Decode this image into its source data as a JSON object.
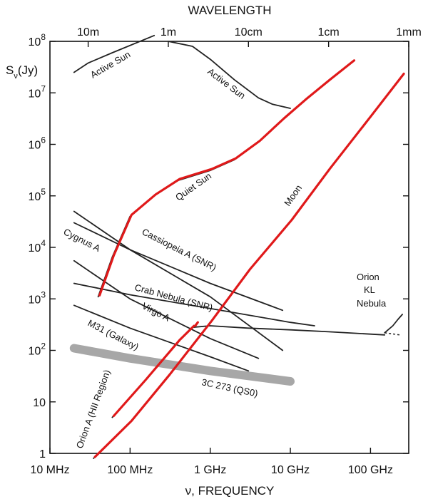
{
  "chart_data": {
    "type": "line",
    "title": "WAVELENGTH",
    "xlabel": "ν, FREQUENCY",
    "ylabel": "Sν(Jy)",
    "x_scale": "log",
    "y_scale": "log",
    "xlim": [
      10,
      300000
    ],
    "ylim": [
      1,
      100000000
    ],
    "x_tick_values": [
      10,
      100,
      1000,
      10000,
      100000
    ],
    "x_ticks": [
      "10 MHz",
      "100 MHz",
      "1 GHz",
      "10 GHz",
      "100 GHz"
    ],
    "top_tick_values": [
      30,
      300,
      3000,
      30000,
      300000
    ],
    "top_ticks": [
      "10m",
      "1m",
      "10cm",
      "1cm",
      "1mm"
    ],
    "y_tick_values": [
      1,
      10,
      100,
      1000,
      10000,
      100000,
      1000000,
      10000000,
      100000000
    ],
    "y_ticks": [
      {
        "base": "1",
        "exp": ""
      },
      {
        "base": "10",
        "exp": ""
      },
      {
        "base": "10",
        "exp": "2"
      },
      {
        "base": "10",
        "exp": "3"
      },
      {
        "base": "10",
        "exp": "4"
      },
      {
        "base": "10",
        "exp": "5"
      },
      {
        "base": "10",
        "exp": "6"
      },
      {
        "base": "10",
        "exp": "7"
      },
      {
        "base": "10",
        "exp": "8"
      }
    ],
    "grid": false,
    "series": [
      {
        "name": "Active Sun",
        "color": "#222222",
        "x": [
          20,
          30,
          60,
          200
        ],
        "y": [
          25000000,
          38000000,
          60000000,
          130000000
        ]
      },
      {
        "name": "Active Sun",
        "color": "#222222",
        "x": [
          300,
          600,
          1000,
          2000,
          4000,
          6000,
          10000
        ],
        "y": [
          100000000,
          80000000,
          45000000,
          18000000,
          8000000,
          6000000,
          5000000
        ]
      },
      {
        "name": "Quiet Sun",
        "color": "#222222",
        "x": [
          40,
          60,
          100,
          200,
          400,
          1000,
          2000,
          4000,
          8000,
          15000,
          30000,
          60000
        ],
        "y": [
          1100,
          6500,
          40000,
          100000,
          200000,
          310000,
          500000,
          1100000,
          3000000,
          7000000,
          17000000,
          40000000
        ]
      },
      {
        "name": "Moon",
        "color": "#222222",
        "x": [
          35,
          100,
          300,
          1000,
          3000,
          10000,
          30000,
          100000,
          250000
        ],
        "y": [
          0.8,
          4,
          32,
          350,
          3500,
          32000,
          320000,
          3500000,
          22000000
        ]
      },
      {
        "name": "Cygnus A",
        "color": "#222222",
        "x": [
          20,
          100,
          1000,
          8000
        ],
        "y": [
          50000,
          9000,
          1100,
          100
        ]
      },
      {
        "name": "Cassiopeia A (SNR)",
        "color": "#222222",
        "x": [
          20,
          100,
          1000,
          8000
        ],
        "y": [
          30000,
          9000,
          2000,
          600
        ]
      },
      {
        "name": "Crab Nebula (SNR)",
        "color": "#222222",
        "x": [
          20,
          100,
          1000,
          10000,
          20000
        ],
        "y": [
          2000,
          1200,
          650,
          350,
          300
        ]
      },
      {
        "name": "Virgo A",
        "color": "#222222",
        "x": [
          20,
          100,
          1000,
          4000
        ],
        "y": [
          5500,
          1000,
          170,
          70
        ]
      },
      {
        "name": "M31 (Galaxy)",
        "color": "#222222",
        "x": [
          20,
          100,
          1000,
          3000
        ],
        "y": [
          750,
          270,
          75,
          40
        ]
      },
      {
        "name": "3C 273 (QS0)",
        "color": "#8a8a8a",
        "x": [
          20,
          100,
          1000,
          10000
        ],
        "y": [
          110,
          70,
          40,
          25
        ]
      },
      {
        "name": "Orion A (HII Region)",
        "color": "#222222",
        "x": [
          60,
          150,
          400,
          600,
          1000,
          3000,
          10000,
          30000,
          150000
        ],
        "y": [
          5,
          25,
          150,
          280,
          300,
          270,
          250,
          230,
          200
        ]
      },
      {
        "name": "Orion KL Nebula",
        "color": "#222222",
        "x": [
          150000,
          190000,
          220000,
          250000
        ],
        "y": [
          220,
          300,
          400,
          500
        ]
      }
    ],
    "highlights": [
      {
        "name": "Quiet Sun",
        "color": "#e0191a",
        "x": [
          40,
          60,
          100,
          200,
          400,
          1000,
          2000,
          4000,
          8000,
          15000,
          30000,
          60000
        ],
        "y": [
          1100,
          6500,
          40000,
          100000,
          200000,
          310000,
          500000,
          1100000,
          3000000,
          7000000,
          17000000,
          40000000
        ]
      },
      {
        "name": "Moon",
        "color": "#e0191a",
        "x": [
          35,
          100,
          300,
          1000,
          3000,
          10000,
          30000,
          100000,
          250000
        ],
        "y": [
          0.8,
          4,
          32,
          350,
          3500,
          32000,
          320000,
          3500000,
          22000000
        ]
      },
      {
        "name": "Orion A (HII Region)",
        "color": "#e0191a",
        "x": [
          60,
          150,
          400,
          600
        ],
        "y": [
          5,
          25,
          150,
          280
        ]
      }
    ],
    "annotations": [
      {
        "text": "Active Sun"
      },
      {
        "text": "Active Sun"
      },
      {
        "text": "Quiet Sun"
      },
      {
        "text": "Moon"
      },
      {
        "text": "Cygnus A"
      },
      {
        "text": "Cassiopeia A (SNR)"
      },
      {
        "text": "Crab Nebula (SNR)"
      },
      {
        "text": "Virgo A"
      },
      {
        "text": "M31 (Galaxy)"
      },
      {
        "text": "3C 273 (QS0)"
      },
      {
        "text": "Orion A (HII Region)"
      },
      {
        "text": "Orion"
      },
      {
        "text": "KL"
      },
      {
        "text": "Nebula"
      }
    ]
  }
}
